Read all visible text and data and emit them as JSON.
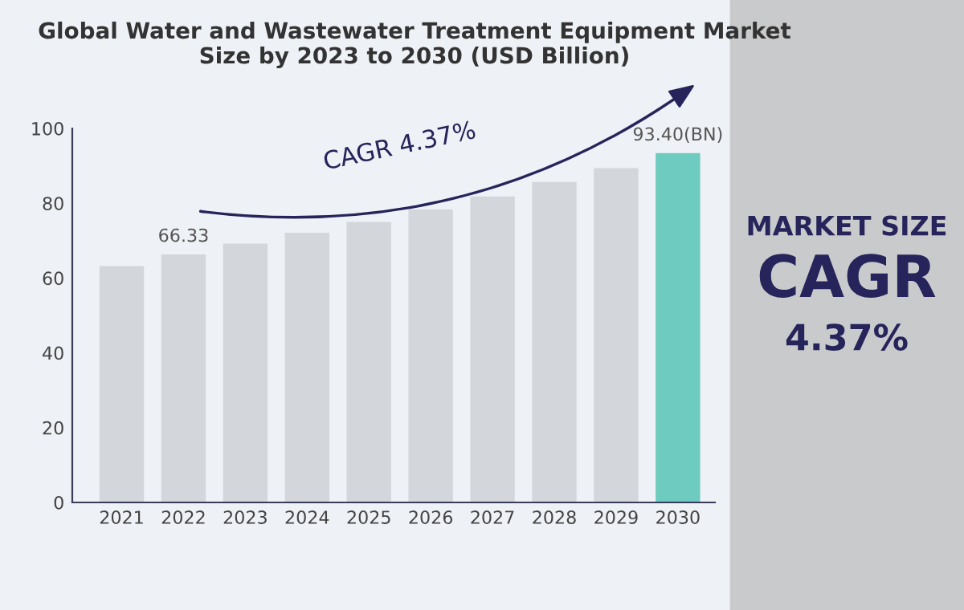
{
  "chart_data": {
    "type": "bar",
    "title": "Global Water and Wastewater Treatment Equipment Market\nSize by 2023 to 2030 (USD Billion)",
    "categories": [
      "2021",
      "2022",
      "2023",
      "2024",
      "2025",
      "2026",
      "2027",
      "2028",
      "2029",
      "2030"
    ],
    "values": [
      63.2,
      66.33,
      69.2,
      72.1,
      75.0,
      78.3,
      81.8,
      85.7,
      89.4,
      93.4
    ],
    "colors": [
      "#d3d6db",
      "#d3d6db",
      "#d3d6db",
      "#d3d6db",
      "#d3d6db",
      "#d3d6db",
      "#d3d6db",
      "#d3d6db",
      "#d3d6db",
      "#6ecbbf"
    ],
    "value_labels": [
      null,
      "66.33",
      null,
      null,
      null,
      null,
      null,
      null,
      null,
      "93.40(BN)"
    ],
    "ylim": [
      0,
      100
    ],
    "yticks": [
      0,
      20,
      40,
      60,
      80,
      100
    ],
    "grid": false,
    "legend": false,
    "annotations": [
      "CAGR 4.37%",
      "MARKET SIZE",
      "CAGR",
      "4.37%"
    ]
  }
}
